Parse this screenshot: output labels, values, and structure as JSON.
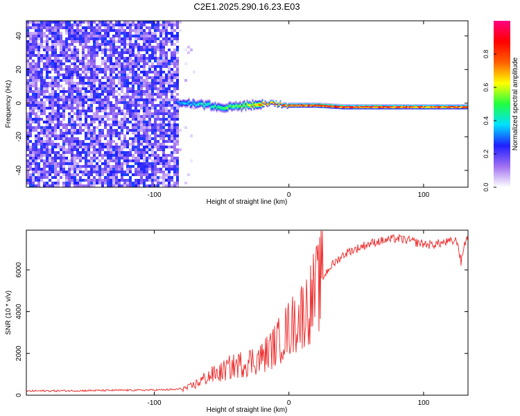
{
  "figure": {
    "title": "C2E1.2025.290.16.23.E03"
  },
  "chart_data": [
    {
      "type": "heatmap",
      "title": "C2E1.2025.290.16.23.E03",
      "xlabel": "Height of straight line (km)",
      "ylabel": "Frequency (Hz)",
      "xlim": [
        -195,
        133
      ],
      "ylim": [
        -50,
        49
      ],
      "xticks": [
        -100,
        0,
        100
      ],
      "yticks": [
        -40,
        -20,
        0,
        20,
        40
      ],
      "noise_region_x": [
        -195,
        -83
      ],
      "signal_region_x": [
        -83,
        133
      ],
      "signal_track": {
        "x": [
          -83,
          -70,
          -60,
          -50,
          -40,
          -30,
          -20,
          -10,
          0,
          10,
          20,
          40,
          60,
          80,
          100,
          120,
          133
        ],
        "freq_hz": [
          1,
          0,
          -1,
          -2,
          -2,
          -1,
          0,
          0,
          -1,
          -1,
          -1,
          -2,
          -2,
          -2,
          -2,
          -2,
          -2
        ],
        "peak_amplitude": [
          0.35,
          0.4,
          0.45,
          0.5,
          0.55,
          0.65,
          0.75,
          0.8,
          0.85,
          0.88,
          0.9,
          0.92,
          0.92,
          0.9,
          0.85,
          0.88,
          0.9
        ]
      },
      "colorbar": {
        "label": "Normalized spectral amplitude",
        "range": [
          0,
          1
        ],
        "ticks": [
          "0.0",
          "0.2",
          "0.4",
          "0.6",
          "0.8"
        ],
        "colors": [
          "#ffffff",
          "#a070f0",
          "#2020ff",
          "#00e0ff",
          "#20ff40",
          "#ffff00",
          "#ff6000",
          "#ff0000",
          "#ff0080"
        ]
      }
    },
    {
      "type": "line",
      "xlabel": "Height of straight line (km)",
      "ylabel": "SNR (10 * v/v)",
      "xlim": [
        -195,
        133
      ],
      "ylim": [
        0,
        7900
      ],
      "xticks": [
        -100,
        0,
        100
      ],
      "yticks": [
        0,
        2000,
        4000,
        6000
      ],
      "color": "#ee3333",
      "series": [
        {
          "name": "SNR",
          "x": [
            -195,
            -150,
            -100,
            -85,
            -75,
            -70,
            -65,
            -60,
            -55,
            -50,
            -45,
            -40,
            -35,
            -30,
            -25,
            -20,
            -15,
            -10,
            -5,
            0,
            5,
            10,
            15,
            20,
            25,
            30,
            35,
            40,
            45,
            50,
            55,
            60,
            65,
            70,
            75,
            80,
            85,
            90,
            95,
            100,
            105,
            110,
            115,
            120,
            125,
            128,
            130,
            133
          ],
          "values": [
            200,
            220,
            250,
            270,
            350,
            500,
            700,
            900,
            1000,
            1100,
            1300,
            1400,
            1500,
            1600,
            1700,
            1800,
            2100,
            2400,
            2800,
            3200,
            3500,
            3900,
            4300,
            5000,
            5600,
            6100,
            6400,
            6700,
            6900,
            7000,
            7150,
            7250,
            7350,
            7400,
            7450,
            7500,
            7450,
            7400,
            7300,
            7250,
            7200,
            7250,
            7300,
            7350,
            7400,
            6300,
            7200,
            7600
          ]
        }
      ]
    }
  ]
}
